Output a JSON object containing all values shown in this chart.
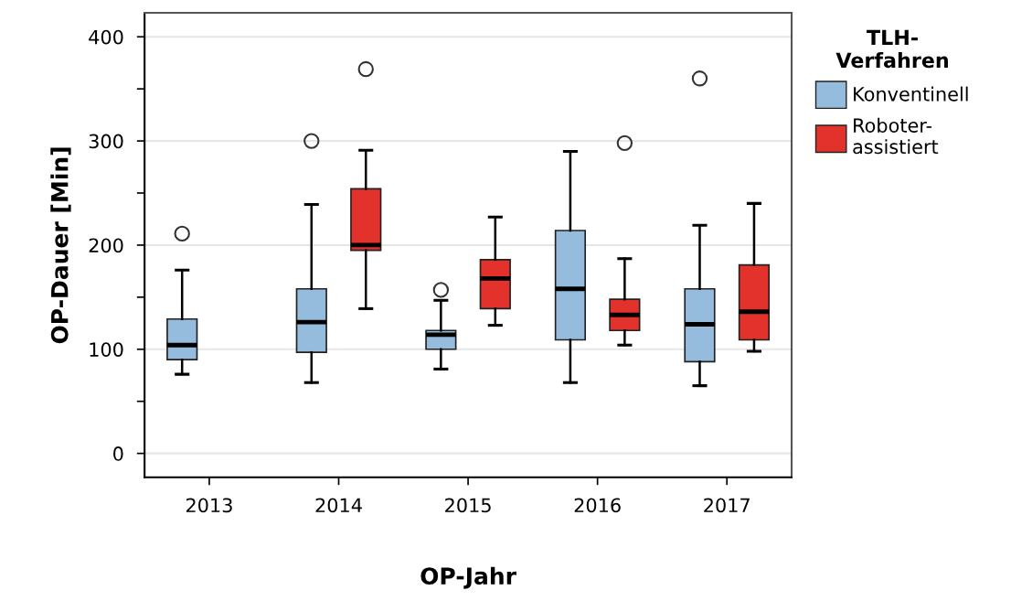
{
  "chart_data": {
    "type": "box",
    "xlabel": "OP-Jahr",
    "ylabel": "OP-Dauer [Min]",
    "legend_title": "TLH-\nVerfahren",
    "categories": [
      "2013",
      "2014",
      "2015",
      "2016",
      "2017"
    ],
    "series": [
      {
        "name": "Konventinell",
        "color": "#95bbdd",
        "boxes": [
          {
            "low": 76,
            "q1": 90,
            "median": 104,
            "q3": 129,
            "high": 176,
            "outliers": [
              211
            ]
          },
          {
            "low": 68,
            "q1": 97,
            "median": 126,
            "q3": 158,
            "high": 239,
            "outliers": [
              300
            ]
          },
          {
            "low": 81,
            "q1": 100,
            "median": 114,
            "q3": 118,
            "high": 147,
            "outliers": [
              157
            ]
          },
          {
            "low": 68,
            "q1": 109,
            "median": 158,
            "q3": 214,
            "high": 290
          },
          {
            "low": 65,
            "q1": 88,
            "median": 124,
            "q3": 158,
            "high": 219,
            "outliers": [
              360
            ]
          }
        ]
      },
      {
        "name": "Roboter-\nassistiert",
        "color": "#e3312b",
        "boxes": [
          null,
          {
            "low": 139,
            "q1": 195,
            "median": 200,
            "q3": 254,
            "high": 291,
            "outliers": [
              369
            ]
          },
          {
            "low": 123,
            "q1": 139,
            "median": 168,
            "q3": 186,
            "high": 227
          },
          {
            "low": 104,
            "q1": 118,
            "median": 133,
            "q3": 148,
            "high": 187,
            "outliers": [
              298
            ]
          },
          {
            "low": 98,
            "q1": 109,
            "median": 136,
            "q3": 181,
            "high": 240
          }
        ]
      }
    ],
    "ylim": [
      -23,
      423
    ],
    "yticks": [
      0,
      {
        "value": 50,
        "label": null
      },
      100,
      {
        "value": 150,
        "label": null
      },
      200,
      {
        "value": 250,
        "label": null
      },
      300,
      {
        "value": 350,
        "label": null
      },
      400
    ],
    "grid": "y",
    "legend": "top right"
  }
}
